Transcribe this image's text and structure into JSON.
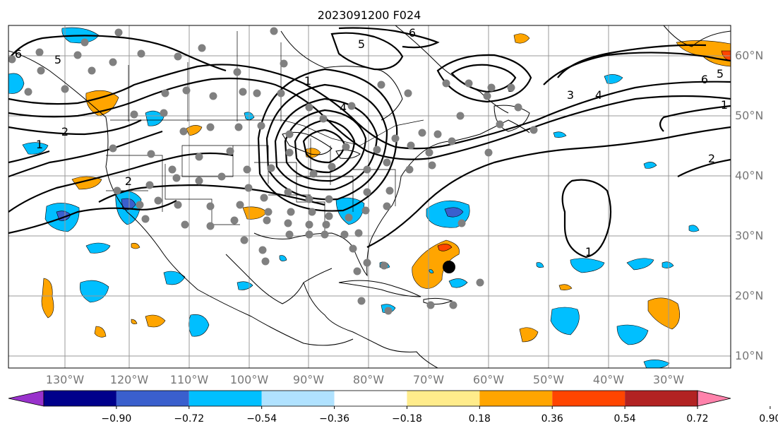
{
  "title": "2023091200 F024",
  "colors": {
    "contour": "#000000",
    "dot": "#808080",
    "hurricane_marker": "#000000",
    "tick_label": "#777777",
    "grid": "#999999"
  },
  "lon_labels": [
    "130°W",
    "120°W",
    "110°W",
    "100°W",
    "90°W",
    "80°W",
    "70°W",
    "60°W",
    "50°W",
    "40°W",
    "30°W"
  ],
  "lat_labels": [
    "60°N",
    "50°N",
    "40°N",
    "30°N",
    "20°N",
    "10°N"
  ],
  "contour_labels": [
    "1",
    "2",
    "3",
    "4",
    "5",
    "6"
  ],
  "colorbar": {
    "colors": [
      "#9932cc",
      "#00008b",
      "#3a5fcd",
      "#00bfff",
      "#b0e2ff",
      "#ffffff",
      "#ffec8b",
      "#ffa500",
      "#ff4500",
      "#b22222",
      "#ff82ab"
    ],
    "tick_labels": [
      "−0.90",
      "−0.72",
      "−0.54",
      "−0.36",
      "−0.18",
      "0.18",
      "0.36",
      "0.54",
      "0.72",
      "0.90"
    ]
  }
}
